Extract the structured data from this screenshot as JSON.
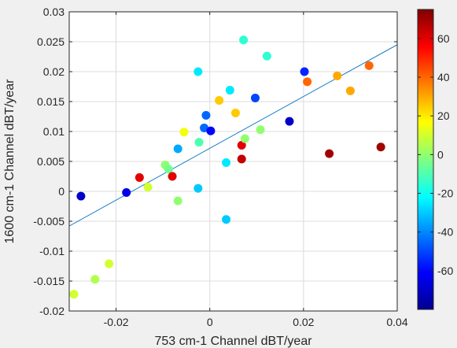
{
  "chart_data": {
    "type": "scatter",
    "xlabel": "753 cm-1 Channel dBT/year",
    "ylabel": "1600 cm-1 Channel dBT/year",
    "xlim": [
      -0.03,
      0.04
    ],
    "ylim": [
      -0.02,
      0.03
    ],
    "xticks": [
      -0.02,
      0,
      0.02,
      0.04
    ],
    "xtick_labels": [
      "-0.02",
      "0",
      "0.02",
      "0.04"
    ],
    "yticks": [
      -0.02,
      -0.015,
      -0.01,
      -0.005,
      0,
      0.005,
      0.01,
      0.015,
      0.02,
      0.025,
      0.03
    ],
    "ytick_labels": [
      "-0.02",
      "-0.015",
      "-0.01",
      "-0.005",
      "0",
      "0.005",
      "0.01",
      "0.015",
      "0.02",
      "0.025",
      "0.03"
    ],
    "grid": true,
    "colorbar": {
      "colormap": "jet",
      "range": [
        -80,
        75
      ],
      "ticks": [
        -60,
        -40,
        -20,
        0,
        20,
        40,
        60
      ],
      "tick_labels": [
        "-60",
        "-40",
        "-20",
        "0",
        "20",
        "40",
        "60"
      ]
    },
    "fit_line": {
      "color": "#0072bd",
      "points": [
        [
          -0.03,
          -0.0058
        ],
        [
          0.04,
          0.0245
        ]
      ]
    },
    "points": [
      {
        "x": -0.029,
        "y": -0.0172,
        "c": 10
      },
      {
        "x": -0.0245,
        "y": -0.0147,
        "c": 5
      },
      {
        "x": -0.0215,
        "y": -0.0121,
        "c": 10
      },
      {
        "x": -0.0275,
        "y": -0.0008,
        "c": -70
      },
      {
        "x": -0.0178,
        "y": -0.0002,
        "c": -65
      },
      {
        "x": -0.015,
        "y": 0.0023,
        "c": 60
      },
      {
        "x": -0.0132,
        "y": 0.0007,
        "c": 10
      },
      {
        "x": -0.0095,
        "y": 0.0044,
        "c": 0
      },
      {
        "x": -0.0088,
        "y": 0.0037,
        "c": -5
      },
      {
        "x": -0.008,
        "y": 0.0025,
        "c": 60
      },
      {
        "x": -0.0068,
        "y": -0.0016,
        "c": 0
      },
      {
        "x": -0.0068,
        "y": 0.0071,
        "c": -35
      },
      {
        "x": -0.0055,
        "y": 0.0099,
        "c": 15
      },
      {
        "x": -0.0025,
        "y": 0.02,
        "c": -25
      },
      {
        "x": -0.0025,
        "y": 0.0005,
        "c": -30
      },
      {
        "x": -0.0023,
        "y": 0.0082,
        "c": -10
      },
      {
        "x": -0.0012,
        "y": 0.0106,
        "c": -45
      },
      {
        "x": -0.0008,
        "y": 0.0127,
        "c": -45
      },
      {
        "x": 0.0002,
        "y": 0.0101,
        "c": -60
      },
      {
        "x": 0.002,
        "y": 0.0152,
        "c": 25
      },
      {
        "x": 0.0035,
        "y": 0.0048,
        "c": -25
      },
      {
        "x": 0.0035,
        "y": -0.0047,
        "c": -30
      },
      {
        "x": 0.0043,
        "y": 0.0169,
        "c": -25
      },
      {
        "x": 0.0055,
        "y": 0.0131,
        "c": 25
      },
      {
        "x": 0.0068,
        "y": 0.0077,
        "c": 60
      },
      {
        "x": 0.0068,
        "y": 0.0054,
        "c": 65
      },
      {
        "x": 0.0072,
        "y": 0.0253,
        "c": -15
      },
      {
        "x": 0.0075,
        "y": 0.0088,
        "c": 0
      },
      {
        "x": 0.0097,
        "y": 0.0156,
        "c": -50
      },
      {
        "x": 0.0108,
        "y": 0.0103,
        "c": 0
      },
      {
        "x": 0.0122,
        "y": 0.0226,
        "c": -15
      },
      {
        "x": 0.017,
        "y": 0.0117,
        "c": -70
      },
      {
        "x": 0.0202,
        "y": 0.02,
        "c": -55
      },
      {
        "x": 0.0208,
        "y": 0.0183,
        "c": 40
      },
      {
        "x": 0.0255,
        "y": 0.0063,
        "c": 70
      },
      {
        "x": 0.0272,
        "y": 0.0193,
        "c": 30
      },
      {
        "x": 0.03,
        "y": 0.0168,
        "c": 30
      },
      {
        "x": 0.034,
        "y": 0.021,
        "c": 40
      },
      {
        "x": 0.0365,
        "y": 0.0074,
        "c": 70
      }
    ]
  }
}
